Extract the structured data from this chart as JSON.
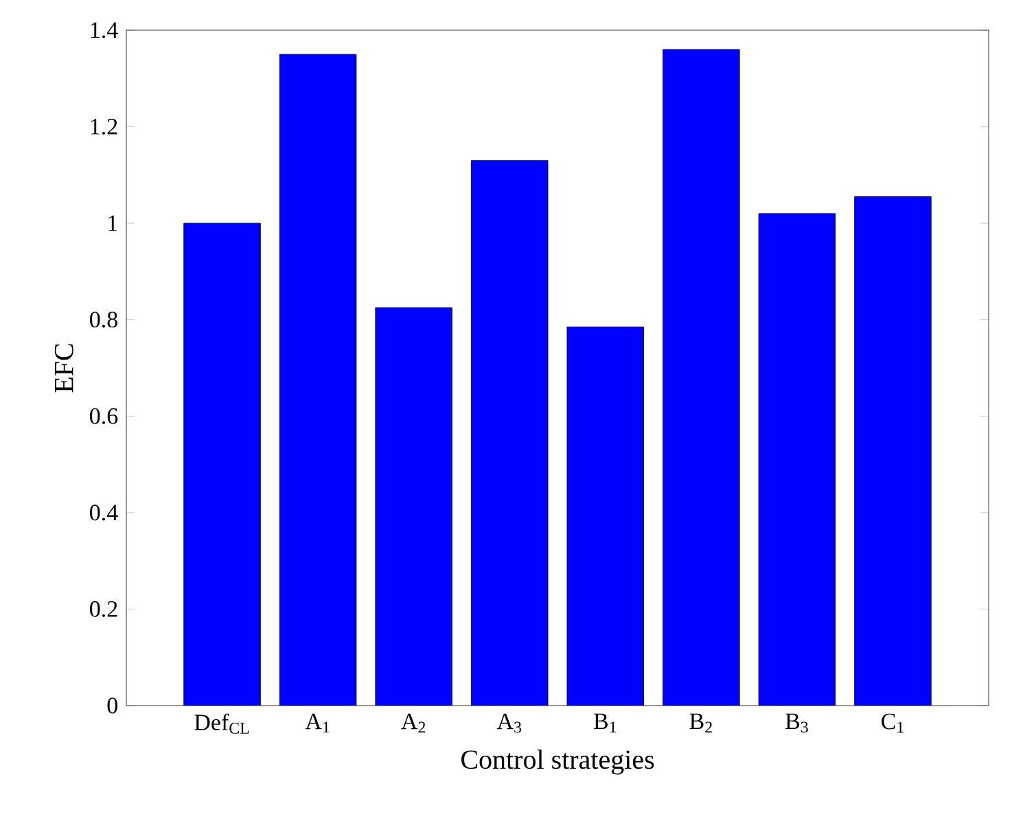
{
  "chart_data": {
    "type": "bar",
    "xlabel": "Control strategies",
    "ylabel": "EFC",
    "categories": [
      "Def$_{CL}$",
      "A$_{1}$",
      "A$_{2}$",
      "A$_{3}$",
      "B$_{1}$",
      "B$_{2}$",
      "B$_{3}$",
      "C$_{1}$"
    ],
    "values": [
      1.0,
      1.35,
      0.825,
      1.13,
      0.785,
      1.36,
      1.02,
      1.055
    ],
    "color": "#0000ff",
    "ylim": [
      0,
      1.4
    ],
    "yticks": [
      0,
      0.2,
      0.4,
      0.6,
      0.8,
      1,
      1.2,
      1.4
    ]
  }
}
